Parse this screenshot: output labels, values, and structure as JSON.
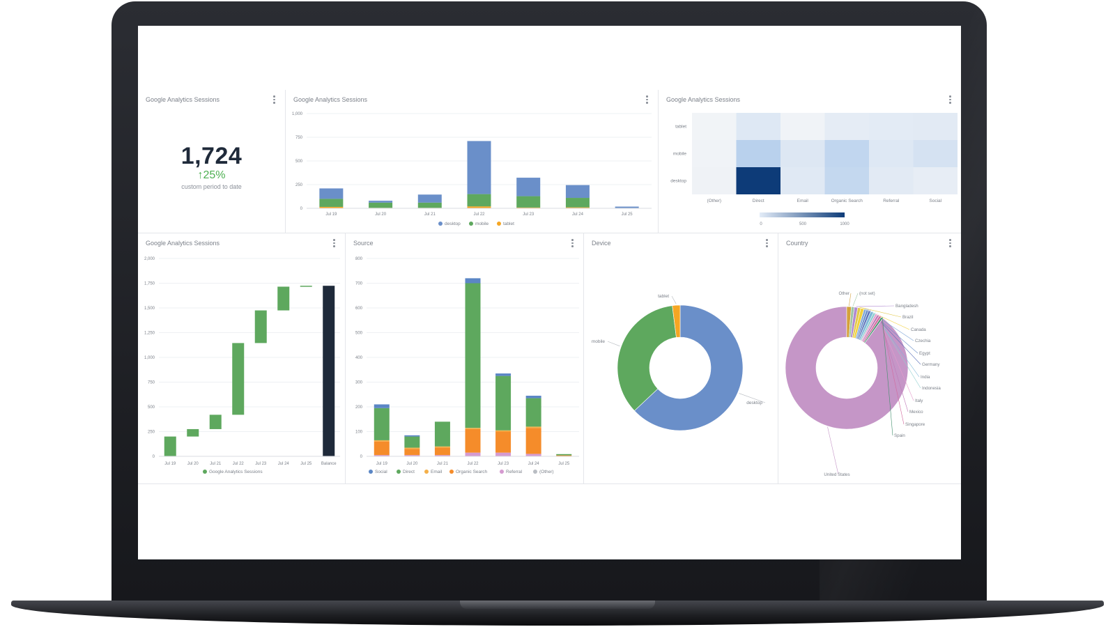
{
  "kpi": {
    "title": "Google Analytics Sessions",
    "value": "1,724",
    "delta": "↑25%",
    "subtitle": "custom period to date"
  },
  "colors": {
    "desktop": "#6a8fc9",
    "mobile": "#5ea85e",
    "tablet": "#f5a623",
    "social": "#5b86c5",
    "direct": "#5ea85e",
    "email": "#f4b04a",
    "organic": "#f58c2a",
    "referral": "#d59ad0",
    "other": "#b9bdc3",
    "balance": "#1f2a3a",
    "heat_low": "#f2f4f7",
    "heat_high": "#0d3b78"
  },
  "chart_data": [
    {
      "id": "device-bars",
      "type": "bar",
      "stacked": true,
      "title": "Google Analytics Sessions",
      "categories": [
        "Jul 19",
        "Jul 20",
        "Jul 21",
        "Jul 22",
        "Jul 23",
        "Jul 24",
        "Jul 25"
      ],
      "series": [
        {
          "name": "desktop",
          "values": [
            110,
            20,
            85,
            560,
            195,
            135,
            15
          ]
        },
        {
          "name": "mobile",
          "values": [
            85,
            55,
            55,
            130,
            120,
            100,
            3
          ]
        },
        {
          "name": "tablet",
          "values": [
            15,
            5,
            5,
            20,
            8,
            10,
            0
          ]
        }
      ],
      "yticks": [
        "0",
        "250",
        "500",
        "750",
        "1,000"
      ],
      "ylim": [
        0,
        1000
      ],
      "legend": "bottom"
    },
    {
      "id": "heatmap",
      "type": "heatmap",
      "title": "Google Analytics Sessions",
      "rows": [
        "tablet",
        "mobile",
        "desktop"
      ],
      "cols": [
        "(Other)",
        "Direct",
        "Email",
        "Organic Search",
        "Referral",
        "Social"
      ],
      "values": [
        [
          5,
          120,
          10,
          80,
          90,
          100
        ],
        [
          10,
          350,
          130,
          300,
          120,
          180
        ],
        [
          20,
          1100,
          110,
          280,
          100,
          70
        ]
      ],
      "scale_labels": [
        "0",
        "500",
        "1000"
      ],
      "scale_max": 1100
    },
    {
      "id": "waterfall",
      "type": "bar",
      "subtype": "waterfall",
      "title": "Google Analytics Sessions",
      "categories": [
        "Jul 19",
        "Jul 20",
        "Jul 21",
        "Jul 22",
        "Jul 23",
        "Jul 24",
        "Jul 25",
        "Balance"
      ],
      "steps": [
        {
          "start": 0,
          "end": 200
        },
        {
          "start": 200,
          "end": 275
        },
        {
          "start": 275,
          "end": 420
        },
        {
          "start": 420,
          "end": 1145
        },
        {
          "start": 1145,
          "end": 1475
        },
        {
          "start": 1475,
          "end": 1715
        },
        {
          "start": 1715,
          "end": 1724
        },
        {
          "start": 0,
          "end": 1724,
          "balance": true
        }
      ],
      "yticks": [
        "0",
        "250",
        "500",
        "750",
        "1,000",
        "1,250",
        "1,500",
        "1,750",
        "2,000"
      ],
      "ylim": [
        0,
        2000
      ],
      "legend": [
        "Google Analytics Sessions"
      ]
    },
    {
      "id": "source-bars",
      "type": "bar",
      "stacked": true,
      "title": "Source",
      "categories": [
        "Jul 19",
        "Jul 20",
        "Jul 21",
        "Jul 22",
        "Jul 23",
        "Jul 24",
        "Jul 25"
      ],
      "series": [
        {
          "name": "Referral",
          "values": [
            5,
            5,
            5,
            15,
            15,
            10,
            1
          ]
        },
        {
          "name": "Organic Search",
          "values": [
            55,
            25,
            30,
            95,
            85,
            105,
            3
          ]
        },
        {
          "name": "Email",
          "values": [
            5,
            5,
            5,
            5,
            5,
            5,
            0
          ]
        },
        {
          "name": "Direct",
          "values": [
            130,
            45,
            100,
            585,
            220,
            115,
            5
          ]
        },
        {
          "name": "Social",
          "values": [
            15,
            5,
            0,
            20,
            10,
            10,
            0
          ]
        },
        {
          "name": "(Other)",
          "values": [
            0,
            0,
            0,
            0,
            0,
            0,
            0
          ]
        }
      ],
      "legend_order": [
        "Social",
        "Direct",
        "Email",
        "Organic Search",
        "Referral",
        "(Other)"
      ],
      "yticks": [
        "0",
        "100",
        "200",
        "300",
        "400",
        "500",
        "600",
        "700",
        "800"
      ],
      "ylim": [
        0,
        800
      ]
    },
    {
      "id": "device-donut",
      "type": "pie",
      "donut": true,
      "title": "Device",
      "slices": [
        {
          "name": "desktop",
          "value": 63
        },
        {
          "name": "mobile",
          "value": 35
        },
        {
          "name": "tablet",
          "value": 2
        }
      ]
    },
    {
      "id": "country-donut",
      "type": "pie",
      "donut": true,
      "title": "Country",
      "slices": [
        {
          "name": "United States",
          "value": 90.0
        },
        {
          "name": "Other",
          "value": 1.2
        },
        {
          "name": "(not set)",
          "value": 0.8
        },
        {
          "name": "Bangladesh",
          "value": 0.9
        },
        {
          "name": "Brazil",
          "value": 0.8
        },
        {
          "name": "Canada",
          "value": 0.9
        },
        {
          "name": "Czechia",
          "value": 0.6
        },
        {
          "name": "Egypt",
          "value": 0.6
        },
        {
          "name": "Germany",
          "value": 0.6
        },
        {
          "name": "India",
          "value": 0.8
        },
        {
          "name": "Indonesia",
          "value": 0.6
        },
        {
          "name": "Italy",
          "value": 0.5
        },
        {
          "name": "Mexico",
          "value": 0.6
        },
        {
          "name": "Singapore",
          "value": 0.6
        },
        {
          "name": "Spain",
          "value": 0.5
        }
      ]
    }
  ]
}
